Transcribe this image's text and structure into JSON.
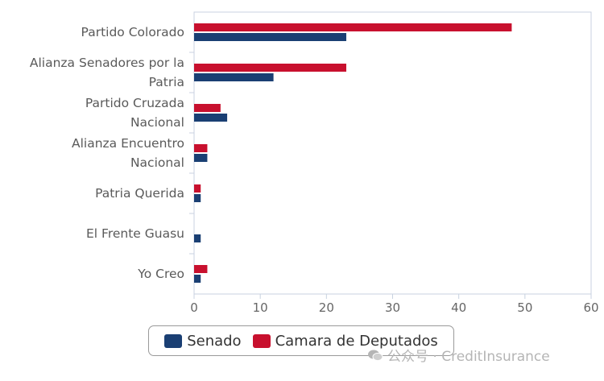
{
  "chart_data": {
    "type": "bar",
    "orientation": "horizontal",
    "categories": [
      [
        "Partido Colorado"
      ],
      [
        "Alianza Senadores por la",
        "Patria"
      ],
      [
        "Partido Cruzada",
        "Nacional"
      ],
      [
        "Alianza Encuentro",
        "Nacional"
      ],
      [
        "Patria Querida"
      ],
      [
        "El Frente Guasu"
      ],
      [
        "Yo Creo"
      ]
    ],
    "series": [
      {
        "name": "Camara de Deputados",
        "color": "#c8102e",
        "values": [
          48,
          23,
          4,
          2,
          1,
          0,
          2
        ]
      },
      {
        "name": "Senado",
        "color": "#1a3f73",
        "values": [
          23,
          12,
          5,
          2,
          1,
          1,
          1
        ]
      }
    ],
    "xlim": [
      0,
      60
    ],
    "xticks": [
      "0",
      "10",
      "20",
      "30",
      "40",
      "50",
      "60"
    ],
    "grid": false,
    "legend_position": "bottom",
    "legend": [
      {
        "name": "Senado",
        "color": "#1a3f73"
      },
      {
        "name": "Camara de Deputados",
        "color": "#c8102e"
      }
    ]
  },
  "watermark": {
    "text": "公众号 · CreditInsurance",
    "icon": "wechat-icon"
  }
}
